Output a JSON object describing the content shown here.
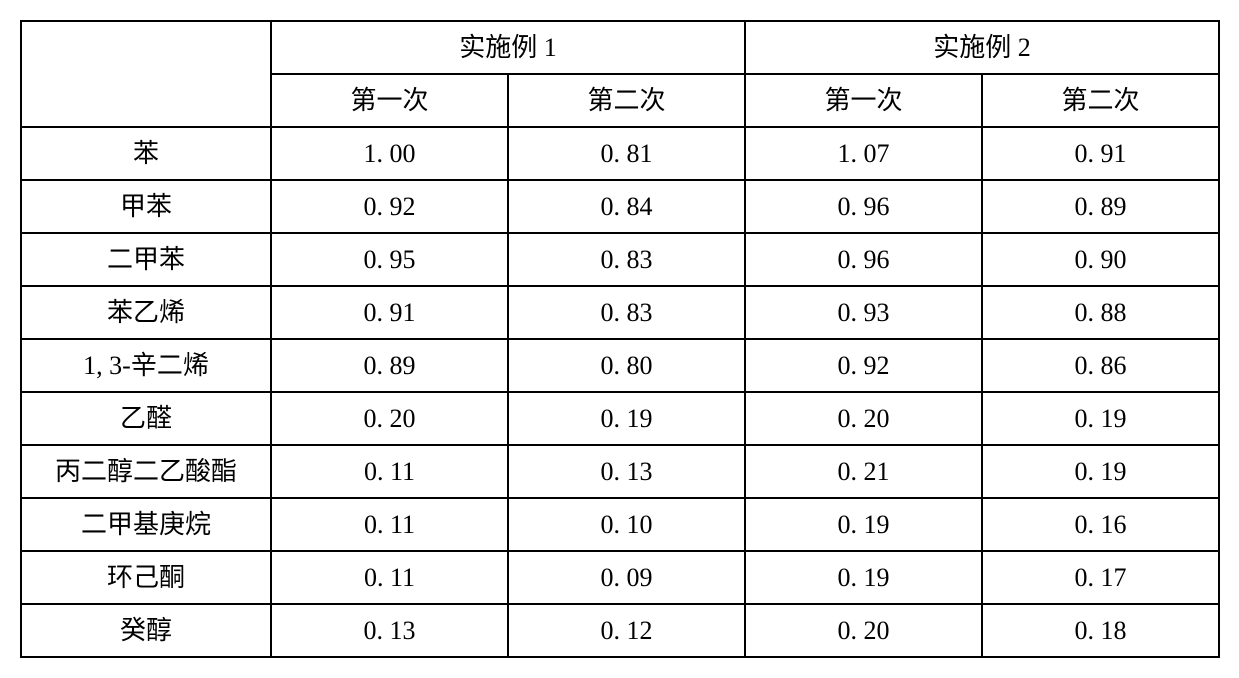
{
  "table": {
    "background_color": "#ffffff",
    "border_color": "#000000",
    "font_family": "SimSun",
    "font_size_pt": 20,
    "group_headers": [
      "实施例 1",
      "实施例 2"
    ],
    "sub_headers": [
      "第一次",
      "第二次",
      "第一次",
      "第二次"
    ],
    "row_labels": [
      "苯",
      "甲苯",
      "二甲苯",
      "苯乙烯",
      "1, 3-辛二烯",
      "乙醛",
      "丙二醇二乙酸酯",
      "二甲基庚烷",
      "环己酮",
      "癸醇"
    ],
    "rows": [
      [
        "1. 00",
        "0. 81",
        "1. 07",
        "0. 91"
      ],
      [
        "0. 92",
        "0. 84",
        "0. 96",
        "0. 89"
      ],
      [
        "0. 95",
        "0. 83",
        "0. 96",
        "0. 90"
      ],
      [
        "0. 91",
        "0. 83",
        "0. 93",
        "0. 88"
      ],
      [
        "0. 89",
        "0. 80",
        "0. 92",
        "0. 86"
      ],
      [
        "0. 20",
        "0. 19",
        "0. 20",
        "0. 19"
      ],
      [
        "0. 11",
        "0. 13",
        "0. 21",
        "0. 19"
      ],
      [
        "0. 11",
        "0. 10",
        "0. 19",
        "0. 16"
      ],
      [
        "0. 11",
        "0. 09",
        "0. 19",
        "0. 17"
      ],
      [
        "0. 13",
        "0. 12",
        "0. 20",
        "0. 18"
      ]
    ]
  }
}
